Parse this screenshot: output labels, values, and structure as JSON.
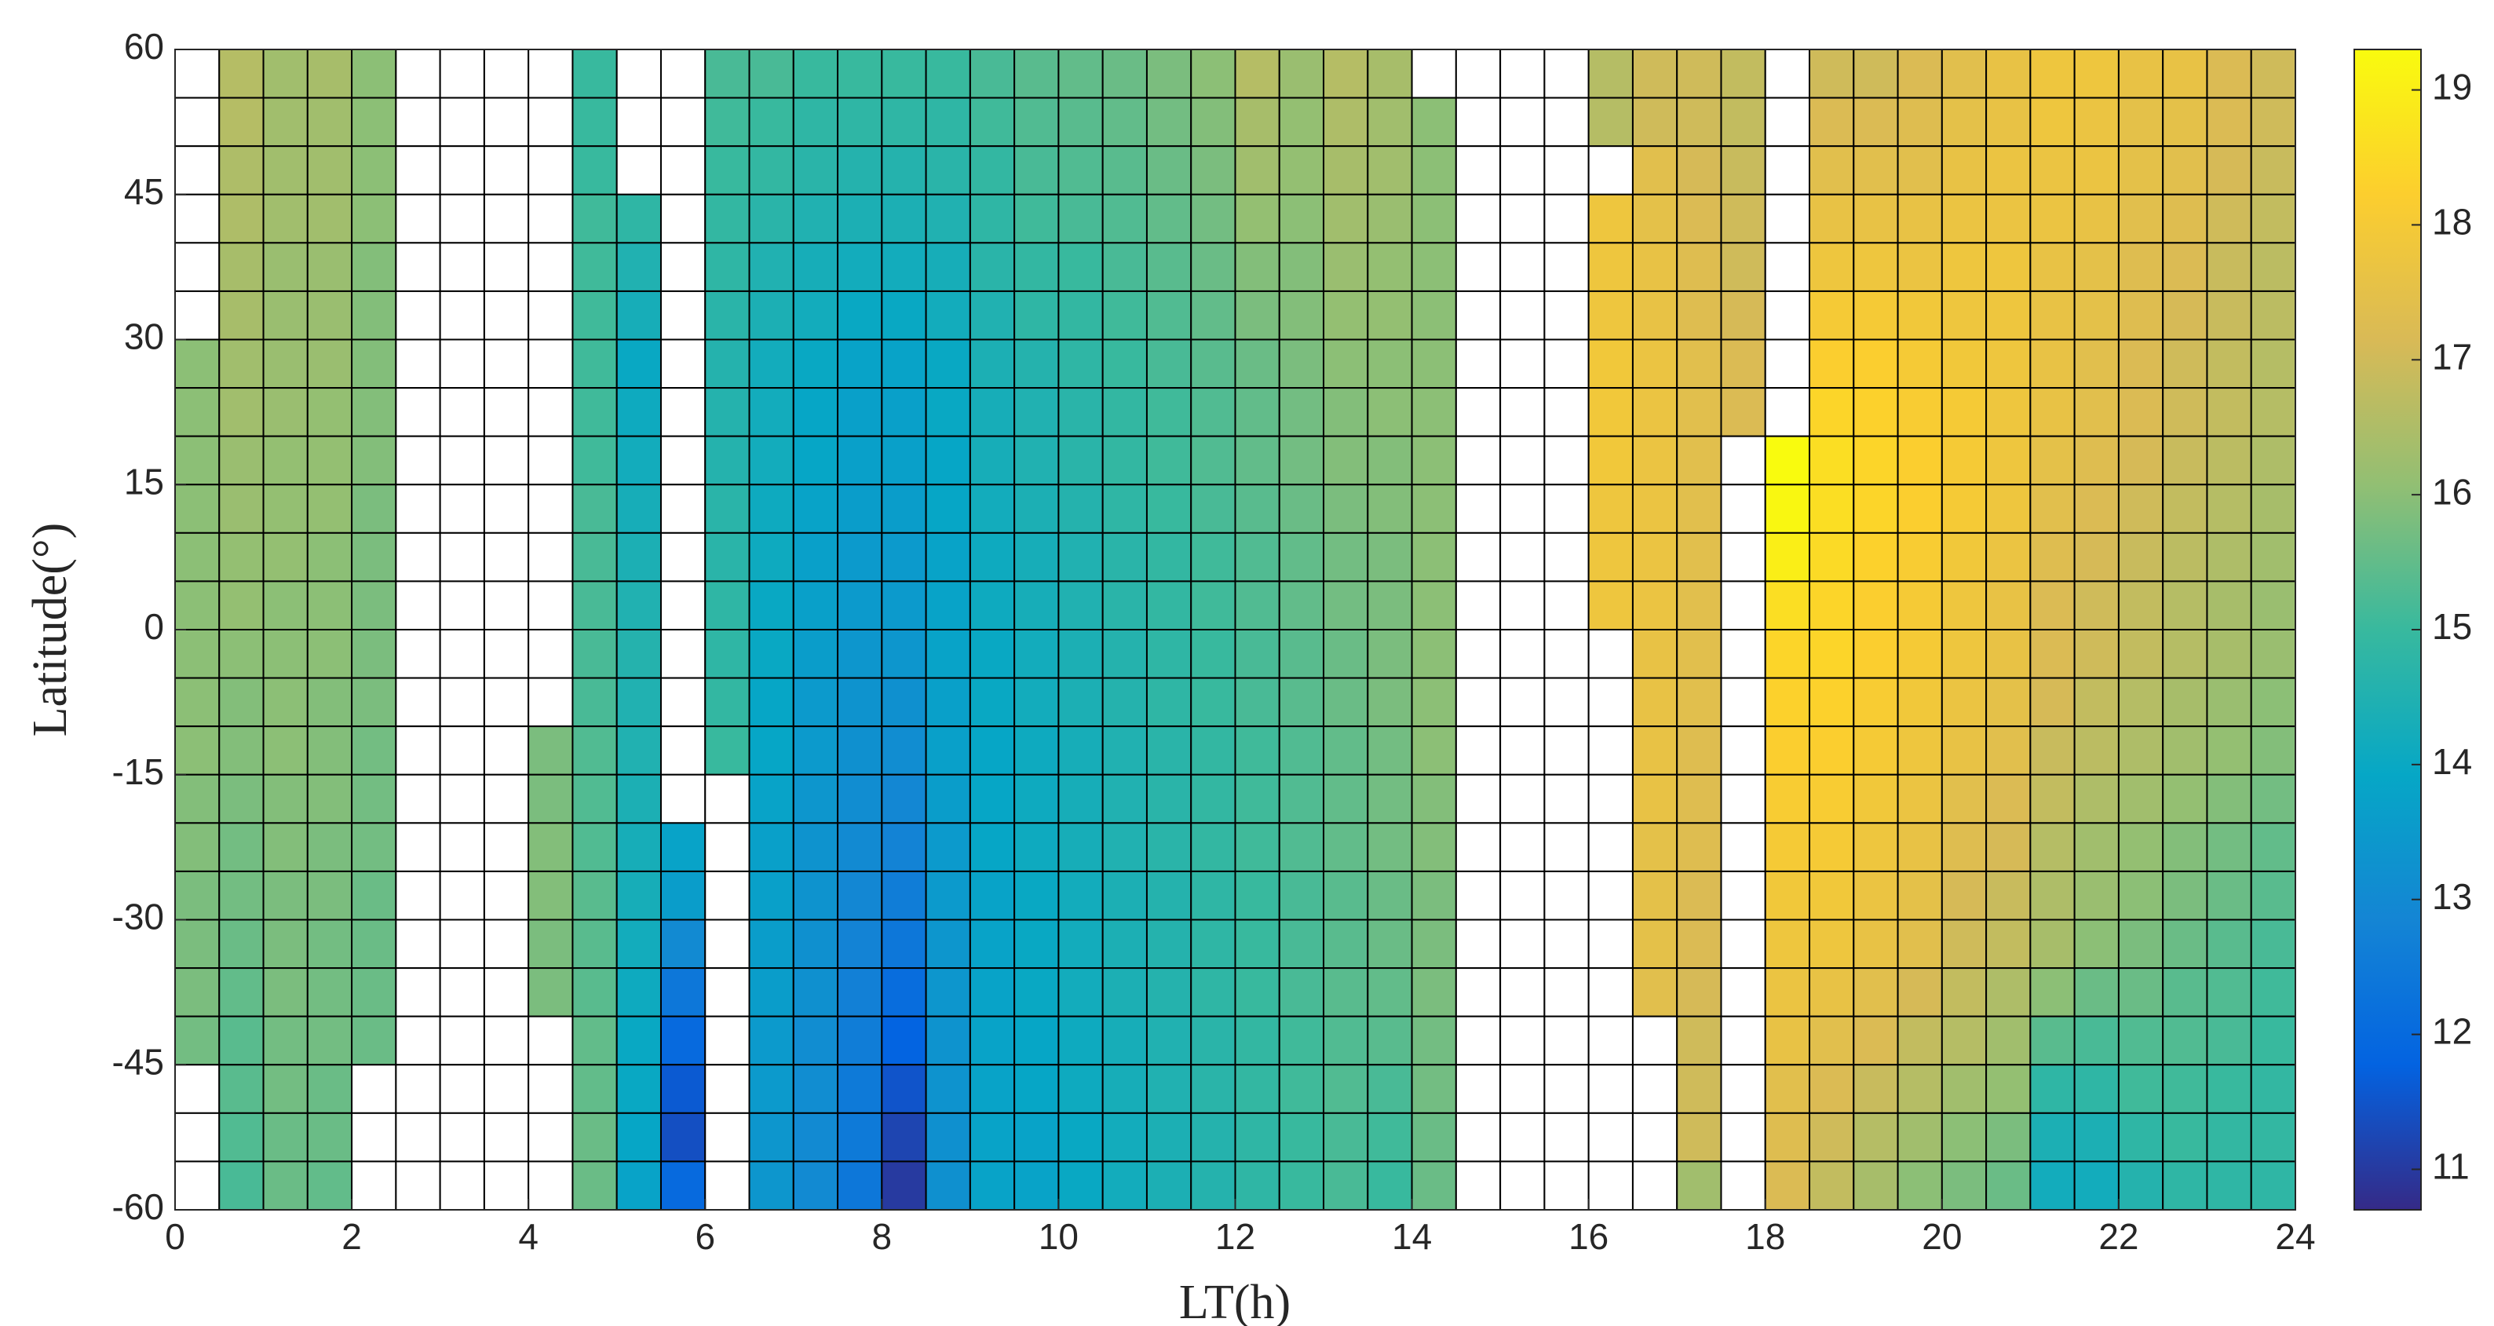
{
  "chart_data": {
    "type": "heatmap",
    "xlabel": "LT(h)",
    "ylabel": "Latitude(°)",
    "xlim": [
      0,
      24
    ],
    "ylim": [
      -60,
      60
    ],
    "xticks": [
      0,
      2,
      4,
      6,
      8,
      10,
      12,
      14,
      16,
      18,
      20,
      22,
      24
    ],
    "yticks": [
      -60,
      -45,
      -30,
      -15,
      0,
      15,
      30,
      45,
      60
    ],
    "clim": [
      10.7,
      19.3
    ],
    "cticks": [
      11,
      12,
      13,
      14,
      15,
      16,
      17,
      18,
      19
    ],
    "colormap": "parula",
    "grid": true,
    "xbins": [
      0,
      0.5,
      1,
      1.5,
      2,
      2.5,
      3,
      3.5,
      4,
      4.5,
      5,
      5.5,
      6,
      6.5,
      7,
      7.5,
      8,
      8.5,
      9,
      9.5,
      10,
      10.5,
      11,
      11.5,
      12,
      12.5,
      13,
      13.5,
      14,
      14.5,
      15,
      15.5,
      16,
      16.5,
      17,
      17.5,
      18,
      18.5,
      19,
      19.5,
      20,
      20.5,
      21,
      21.5,
      22,
      22.5,
      23,
      23.5,
      24
    ],
    "ybins": [
      60,
      55,
      50,
      45,
      40,
      35,
      30,
      25,
      20,
      15,
      10,
      5,
      0,
      -5,
      -10,
      -15,
      -20,
      -25,
      -30,
      -35,
      -40,
      -45,
      -50,
      -55,
      -60
    ],
    "z": [
      [
        null,
        null,
        null,
        null,
        null,
        null,
        16.0,
        16.0,
        16.0,
        16.0,
        16.0,
        16.0,
        16.0,
        16.0,
        16.0,
        15.9,
        15.9,
        15.8,
        15.8,
        15.8,
        15.7,
        null,
        null,
        null
      ],
      [
        16.6,
        16.6,
        16.5,
        16.5,
        16.4,
        16.4,
        16.3,
        16.3,
        16.2,
        16.2,
        16.1,
        16.1,
        16.0,
        15.9,
        15.9,
        15.8,
        15.7,
        15.7,
        15.6,
        15.5,
        15.4,
        15.4,
        15.3,
        15.2
      ],
      [
        16.3,
        16.3,
        16.3,
        16.3,
        16.2,
        16.2,
        16.2,
        16.2,
        16.1,
        16.1,
        16.1,
        16.0,
        16.0,
        16.0,
        16.0,
        15.9,
        15.9,
        15.8,
        15.8,
        15.8,
        15.7,
        15.7,
        15.6,
        15.6
      ],
      [
        16.4,
        16.3,
        16.3,
        16.3,
        16.2,
        16.2,
        16.2,
        16.1,
        16.1,
        16.1,
        16.0,
        16.0,
        16.0,
        15.9,
        15.9,
        15.9,
        15.8,
        15.8,
        15.7,
        15.7,
        15.7,
        15.6,
        15.6,
        15.5
      ],
      [
        16.0,
        16.0,
        16.0,
        16.0,
        15.9,
        15.9,
        15.9,
        15.9,
        15.9,
        15.8,
        15.8,
        15.8,
        15.8,
        15.8,
        15.7,
        15.7,
        15.7,
        15.6,
        15.6,
        15.6,
        15.6,
        null,
        null,
        null
      ],
      [
        null,
        null,
        null,
        null,
        null,
        null,
        null,
        null,
        null,
        null,
        null,
        null,
        null,
        null,
        null,
        null,
        null,
        null,
        null,
        null,
        null,
        null,
        null,
        null
      ],
      [
        null,
        null,
        null,
        null,
        null,
        null,
        null,
        null,
        null,
        null,
        null,
        null,
        null,
        null,
        null,
        null,
        null,
        null,
        null,
        null,
        null,
        null,
        null,
        null
      ],
      [
        null,
        null,
        null,
        null,
        null,
        null,
        null,
        null,
        null,
        null,
        null,
        null,
        null,
        null,
        null,
        null,
        null,
        null,
        null,
        null,
        null,
        null,
        null,
        null
      ],
      [
        null,
        null,
        null,
        null,
        null,
        null,
        null,
        null,
        null,
        null,
        null,
        null,
        null,
        null,
        15.8,
        15.8,
        15.9,
        15.9,
        15.8,
        15.8,
        null,
        null,
        null,
        null
      ],
      [
        15.0,
        15.0,
        15.0,
        15.1,
        15.1,
        15.1,
        15.1,
        15.1,
        15.1,
        15.2,
        15.2,
        15.2,
        15.2,
        15.2,
        15.3,
        15.3,
        15.3,
        15.4,
        15.4,
        15.4,
        15.5,
        15.5,
        15.6,
        15.6
      ],
      [
        null,
        null,
        null,
        14.8,
        14.5,
        14.3,
        14.0,
        14.1,
        14.2,
        14.3,
        14.4,
        14.5,
        14.6,
        14.5,
        14.5,
        14.4,
        14.3,
        14.3,
        14.2,
        14.1,
        14.0,
        14.0,
        13.9,
        13.8
      ],
      [
        null,
        null,
        null,
        null,
        null,
        null,
        null,
        null,
        null,
        null,
        null,
        null,
        null,
        null,
        null,
        null,
        13.8,
        13.6,
        13.0,
        12.4,
        12.0,
        11.6,
        11.4,
        12.0
      ],
      [
        15.2,
        15.1,
        15.0,
        14.9,
        14.8,
        14.7,
        14.6,
        14.6,
        14.6,
        14.7,
        14.7,
        14.8,
        14.8,
        14.9,
        15.0,
        null,
        null,
        null,
        null,
        null,
        null,
        null,
        null,
        null
      ],
      [
        15.2,
        15.0,
        14.9,
        14.7,
        14.5,
        14.4,
        14.2,
        14.2,
        14.2,
        14.1,
        14.1,
        14.0,
        14.0,
        13.9,
        13.9,
        13.8,
        13.7,
        13.7,
        13.6,
        13.6,
        13.5,
        13.5,
        13.4,
        13.4
      ],
      [
        15.0,
        14.8,
        14.7,
        14.5,
        14.3,
        14.2,
        14.0,
        13.9,
        13.9,
        13.8,
        13.7,
        13.7,
        13.6,
        13.5,
        13.5,
        13.4,
        13.3,
        13.3,
        13.2,
        13.2,
        13.1,
        13.1,
        13.0,
        13.0
      ],
      [
        15.0,
        14.8,
        14.6,
        14.4,
        14.2,
        14.0,
        13.8,
        13.7,
        13.7,
        13.6,
        13.5,
        13.5,
        13.4,
        13.3,
        13.2,
        13.1,
        13.0,
        12.9,
        12.8,
        12.7,
        12.6,
        12.5,
        12.5,
        12.4
      ],
      [
        15.0,
        14.8,
        14.6,
        14.4,
        14.2,
        14.0,
        13.8,
        13.7,
        13.7,
        13.6,
        13.5,
        13.5,
        13.4,
        13.2,
        13.1,
        12.9,
        12.8,
        12.6,
        12.4,
        12.1,
        11.8,
        11.5,
        11.2,
        11.0
      ],
      [
        15.0,
        14.8,
        14.7,
        14.5,
        14.3,
        14.2,
        14.0,
        14.0,
        13.9,
        13.9,
        13.8,
        13.8,
        13.8,
        13.7,
        13.7,
        13.6,
        13.5,
        13.5,
        13.4,
        13.4,
        13.3,
        13.3,
        13.2,
        13.2
      ],
      [
        15.2,
        15.1,
        14.9,
        14.8,
        14.7,
        14.5,
        14.4,
        14.3,
        14.3,
        14.2,
        14.1,
        14.1,
        14.0,
        14.0,
        13.9,
        13.9,
        13.9,
        13.8,
        13.8,
        13.8,
        13.8,
        13.8,
        13.8,
        13.8
      ],
      [
        15.4,
        15.3,
        15.2,
        15.1,
        14.9,
        14.8,
        14.6,
        14.5,
        14.5,
        14.4,
        14.3,
        14.3,
        14.2,
        14.2,
        14.1,
        14.1,
        14.1,
        14.0,
        14.0,
        14.0,
        13.9,
        13.9,
        13.8,
        13.8
      ],
      [
        15.5,
        15.4,
        15.3,
        15.2,
        15.0,
        14.9,
        14.8,
        14.7,
        14.7,
        14.6,
        14.5,
        14.5,
        14.4,
        14.4,
        14.3,
        14.3,
        14.3,
        14.2,
        14.2,
        14.2,
        14.1,
        14.1,
        14.0,
        14.0
      ],
      [
        15.6,
        15.5,
        15.4,
        15.3,
        15.2,
        15.1,
        15.0,
        14.9,
        14.9,
        14.8,
        14.7,
        14.7,
        14.6,
        14.6,
        14.5,
        14.5,
        14.5,
        14.4,
        14.4,
        14.4,
        14.3,
        14.3,
        14.2,
        14.2
      ],
      [
        15.8,
        15.7,
        15.6,
        15.5,
        15.4,
        15.3,
        15.2,
        15.1,
        15.1,
        15.0,
        14.9,
        14.9,
        14.8,
        14.8,
        14.7,
        14.7,
        14.7,
        14.6,
        14.6,
        14.6,
        14.5,
        14.5,
        14.4,
        14.4
      ],
      [
        16.0,
        15.9,
        15.8,
        15.7,
        15.6,
        15.5,
        15.4,
        15.3,
        15.3,
        15.2,
        15.1,
        15.1,
        15.0,
        15.0,
        14.9,
        14.9,
        14.9,
        14.8,
        14.8,
        14.8,
        14.7,
        14.7,
        14.6,
        14.6
      ],
      [
        16.6,
        16.4,
        16.3,
        16.1,
        15.9,
        15.8,
        15.6,
        15.5,
        15.5,
        15.4,
        15.3,
        15.3,
        15.2,
        15.2,
        15.1,
        15.1,
        15.1,
        15.0,
        15.0,
        15.0,
        14.9,
        14.9,
        14.8,
        14.8
      ],
      [
        16.2,
        16.1,
        16.1,
        16.0,
        15.9,
        15.9,
        15.8,
        15.7,
        15.7,
        15.6,
        15.5,
        15.5,
        15.4,
        15.4,
        15.3,
        15.3,
        15.3,
        15.2,
        15.2,
        15.2,
        15.1,
        15.1,
        15.0,
        15.0
      ],
      [
        16.6,
        16.5,
        16.4,
        16.3,
        16.2,
        16.1,
        16.0,
        15.9,
        15.9,
        15.8,
        15.7,
        15.7,
        15.6,
        15.6,
        15.5,
        15.5,
        15.5,
        15.4,
        15.4,
        15.4,
        15.3,
        15.3,
        15.2,
        15.2
      ],
      [
        16.4,
        16.3,
        16.3,
        16.2,
        16.1,
        16.1,
        16.0,
        16.0,
        15.9,
        15.9,
        15.8,
        15.8,
        15.8,
        15.8,
        15.7,
        15.7,
        15.7,
        15.6,
        15.6,
        15.5,
        15.4,
        15.2,
        15.1,
        15.0
      ],
      [
        null,
        16.0,
        16.0,
        16.0,
        16.0,
        16.0,
        16.0,
        16.0,
        16.0,
        16.0,
        16.0,
        16.0,
        16.0,
        16.0,
        16.0,
        15.9,
        15.9,
        15.8,
        15.8,
        15.8,
        15.7,
        15.7,
        15.6,
        15.6
      ],
      [
        null,
        null,
        null,
        null,
        null,
        null,
        null,
        null,
        null,
        null,
        null,
        null,
        null,
        null,
        null,
        null,
        null,
        null,
        null,
        null,
        null,
        null,
        null,
        null
      ],
      [
        null,
        null,
        null,
        null,
        null,
        null,
        null,
        null,
        null,
        null,
        null,
        null,
        null,
        null,
        null,
        null,
        null,
        null,
        null,
        null,
        null,
        null,
        null,
        null
      ],
      [
        null,
        null,
        null,
        null,
        null,
        null,
        null,
        null,
        null,
        null,
        null,
        null,
        null,
        null,
        null,
        null,
        null,
        null,
        null,
        null,
        null,
        null,
        null,
        null
      ],
      [
        16.6,
        16.6,
        null,
        17.8,
        17.8,
        17.8,
        17.9,
        17.9,
        17.9,
        17.8,
        17.8,
        17.8,
        null,
        null,
        null,
        null,
        null,
        null,
        null,
        null,
        null,
        null,
        null,
        null
      ],
      [
        17.0,
        17.0,
        17.4,
        17.5,
        17.6,
        17.6,
        17.7,
        17.7,
        17.7,
        17.7,
        17.7,
        17.7,
        17.6,
        17.6,
        17.6,
        17.6,
        17.5,
        17.5,
        17.5,
        17.4,
        null,
        null,
        null,
        null
      ],
      [
        17.0,
        17.0,
        17.1,
        17.2,
        17.3,
        17.3,
        17.4,
        17.4,
        17.4,
        17.4,
        17.4,
        17.4,
        17.4,
        17.4,
        17.3,
        17.3,
        17.3,
        17.2,
        17.2,
        17.1,
        17.0,
        17.0,
        17.0,
        16.3
      ],
      [
        16.8,
        16.8,
        16.9,
        17.0,
        17.0,
        17.1,
        17.2,
        17.2,
        null,
        null,
        null,
        null,
        null,
        null,
        null,
        null,
        null,
        null,
        null,
        null,
        null,
        null,
        null,
        null
      ],
      [
        null,
        null,
        null,
        null,
        null,
        null,
        null,
        null,
        19.3,
        19.2,
        19.0,
        18.6,
        18.4,
        18.3,
        18.2,
        18.1,
        18.0,
        17.9,
        17.8,
        17.7,
        17.6,
        17.4,
        17.3,
        17.2
      ],
      [
        17.0,
        17.2,
        17.4,
        17.6,
        17.8,
        18.0,
        18.2,
        18.4,
        18.6,
        18.6,
        18.5,
        18.4,
        18.4,
        18.3,
        18.2,
        18.1,
        18.0,
        17.9,
        17.8,
        17.6,
        17.4,
        17.2,
        17.0,
        16.8
      ],
      [
        17.0,
        17.2,
        17.4,
        17.6,
        17.8,
        18.0,
        18.2,
        18.3,
        18.4,
        18.4,
        18.3,
        18.2,
        18.2,
        18.1,
        18.0,
        17.9,
        17.8,
        17.7,
        17.6,
        17.4,
        17.2,
        16.9,
        16.6,
        16.4
      ],
      [
        17.2,
        17.3,
        17.4,
        17.6,
        17.7,
        17.9,
        18.0,
        18.1,
        18.2,
        18.2,
        18.1,
        18.0,
        18.0,
        17.9,
        17.8,
        17.7,
        17.6,
        17.5,
        17.4,
        17.1,
        16.8,
        16.6,
        16.3,
        16.0
      ],
      [
        17.4,
        17.5,
        17.6,
        17.7,
        17.8,
        17.8,
        17.9,
        18.0,
        18.0,
        18.0,
        17.9,
        17.8,
        17.8,
        17.7,
        17.6,
        17.4,
        17.3,
        17.1,
        17.0,
        16.8,
        16.6,
        16.3,
        16.0,
        15.8
      ],
      [
        17.6,
        17.6,
        17.7,
        17.7,
        17.8,
        17.8,
        17.8,
        17.8,
        17.8,
        17.8,
        17.7,
        17.6,
        17.6,
        17.5,
        17.4,
        17.2,
        17.1,
        16.9,
        16.8,
        16.5,
        16.3,
        16.1,
        15.8,
        15.6
      ],
      [
        17.8,
        17.8,
        17.7,
        17.7,
        17.6,
        17.6,
        17.6,
        17.6,
        17.5,
        17.4,
        17.3,
        17.2,
        17.2,
        17.1,
        16.9,
        16.8,
        16.6,
        16.5,
        16.4,
        16.0,
        15.4,
        14.8,
        14.4,
        14.2
      ],
      [
        17.8,
        17.7,
        17.7,
        17.6,
        17.5,
        17.5,
        17.4,
        17.4,
        17.3,
        17.2,
        17.1,
        17.0,
        17.0,
        16.8,
        16.7,
        16.5,
        16.3,
        16.2,
        16.0,
        15.6,
        15.2,
        14.8,
        14.4,
        14.2
      ],
      [
        17.6,
        17.5,
        17.5,
        17.4,
        17.3,
        17.3,
        17.2,
        17.2,
        17.1,
        17.0,
        16.9,
        16.8,
        16.8,
        16.6,
        16.5,
        16.3,
        16.1,
        16.0,
        15.8,
        15.6,
        15.3,
        15.1,
        14.8,
        14.6
      ],
      [
        17.6,
        17.5,
        17.4,
        17.3,
        17.2,
        17.1,
        17.0,
        17.0,
        16.9,
        16.8,
        16.7,
        16.6,
        16.6,
        16.4,
        16.3,
        16.1,
        15.9,
        15.8,
        15.6,
        15.4,
        15.3,
        15.1,
        15.0,
        14.8
      ],
      [
        17.2,
        17.2,
        17.1,
        17.0,
        16.9,
        16.9,
        16.8,
        16.8,
        16.7,
        16.6,
        16.5,
        16.4,
        16.4,
        16.2,
        16.1,
        15.9,
        15.7,
        15.6,
        15.4,
        15.3,
        15.2,
        15.0,
        14.9,
        14.8
      ],
      [
        17.0,
        17.0,
        16.9,
        16.8,
        16.7,
        16.7,
        16.6,
        16.6,
        16.5,
        16.4,
        16.3,
        16.2,
        16.2,
        16.0,
        15.9,
        15.7,
        15.5,
        15.4,
        15.2,
        15.1,
        15.0,
        14.9,
        14.9,
        14.8
      ]
    ]
  }
}
